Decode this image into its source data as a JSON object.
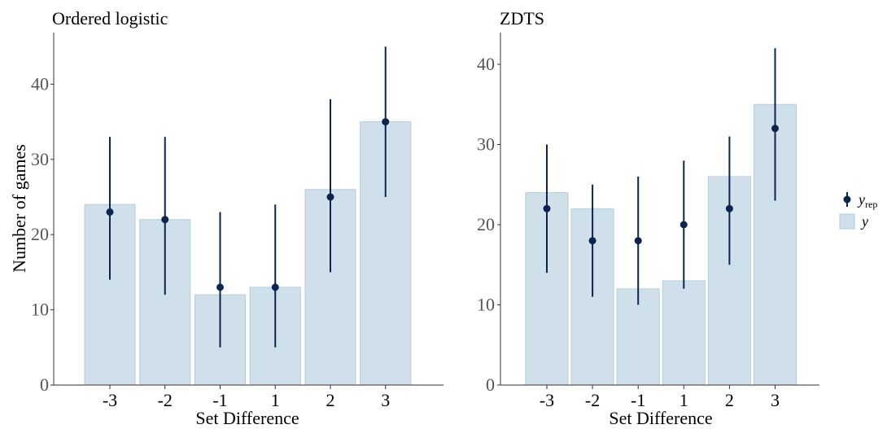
{
  "colors": {
    "bar_fill": "#d0e0ea",
    "bar_stroke": "#b4cddb",
    "point": "#0b2550",
    "axis": "#333333",
    "text": "#000000",
    "tick_text": "#555555"
  },
  "shared": {
    "xlabel": "Set Difference",
    "ylabel": "Number of games"
  },
  "legend": {
    "yrep_main": "y",
    "yrep_sub": "rep",
    "y_label": "y",
    "placement": "right"
  },
  "chart_data": [
    {
      "type": "bar",
      "title": "Ordered logistic",
      "categories": [
        "-3",
        "-2",
        "-1",
        "1",
        "2",
        "3"
      ],
      "xlabel": "Set Difference",
      "ylabel": "Number of games",
      "ylim": [
        0,
        46
      ],
      "yticks": [
        0,
        10,
        20,
        30,
        40
      ],
      "grid": false,
      "series": [
        {
          "name": "y",
          "kind": "bar",
          "values": [
            24,
            22,
            12,
            13,
            26,
            35
          ]
        },
        {
          "name": "y_rep",
          "kind": "pointrange",
          "values": [
            23,
            22,
            13,
            13,
            25,
            35
          ],
          "lower": [
            14,
            12,
            5,
            5,
            15,
            25
          ],
          "upper": [
            33,
            33,
            23,
            24,
            38,
            45
          ]
        }
      ]
    },
    {
      "type": "bar",
      "title": "ZDTS",
      "categories": [
        "-3",
        "-2",
        "-1",
        "1",
        "2",
        "3"
      ],
      "xlabel": "Set Difference",
      "ylabel": "",
      "ylim": [
        0,
        44
      ],
      "yticks": [
        0,
        10,
        20,
        30,
        40
      ],
      "grid": false,
      "series": [
        {
          "name": "y",
          "kind": "bar",
          "values": [
            24,
            22,
            12,
            13,
            26,
            35
          ]
        },
        {
          "name": "y_rep",
          "kind": "pointrange",
          "values": [
            22,
            18,
            18,
            20,
            22,
            32
          ],
          "lower": [
            14,
            11,
            10,
            12,
            15,
            23
          ],
          "upper": [
            30,
            25,
            26,
            28,
            31,
            42
          ]
        }
      ]
    }
  ]
}
